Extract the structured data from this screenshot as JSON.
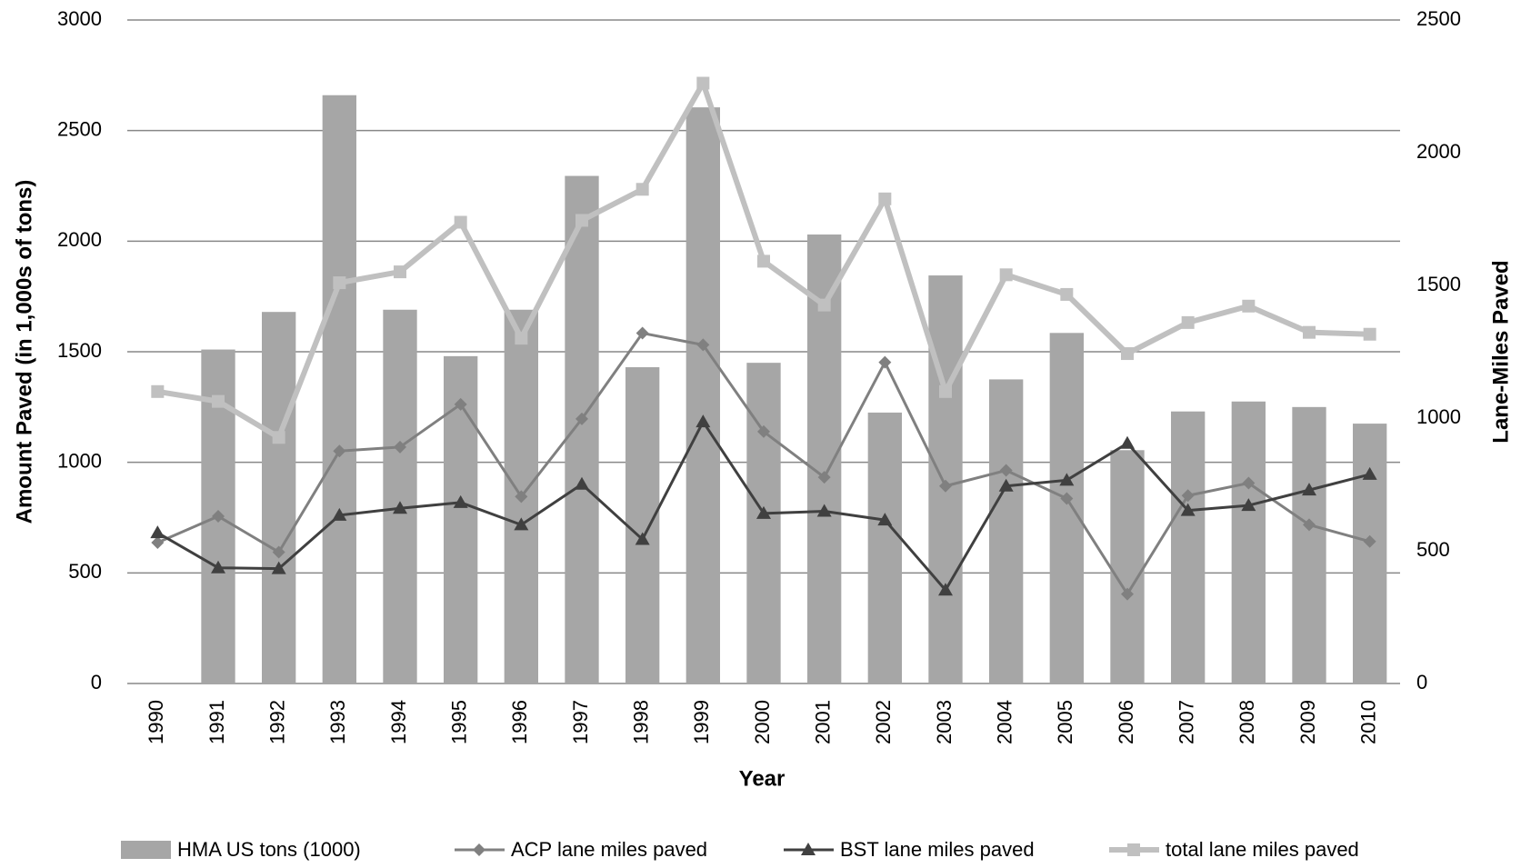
{
  "chart_data": {
    "type": "bar-line",
    "x_label": "Year",
    "y_label": "Amount Paved (in 1,000s of tons)",
    "y2_label": "Lane-Miles Paved",
    "categories": [
      "1990",
      "1991",
      "1992",
      "1993",
      "1994",
      "1995",
      "1996",
      "1997",
      "1998",
      "1999",
      "2000",
      "2001",
      "2002",
      "2003",
      "2004",
      "2005",
      "2006",
      "2007",
      "2008",
      "2009",
      "2010"
    ],
    "ylim": [
      0,
      3000
    ],
    "yticks": [
      0,
      500,
      1000,
      1500,
      2000,
      2500,
      3000
    ],
    "y2lim": [
      0,
      2500
    ],
    "y2ticks": [
      0,
      500,
      1000,
      1500,
      2000,
      2500
    ],
    "grid": true,
    "legend": "bottom",
    "series": [
      {
        "name": "HMA US tons (1000)",
        "type": "bar",
        "color": "#a6a6a6",
        "values": [
          null,
          1510,
          1680,
          2660,
          1690,
          1480,
          1690,
          2295,
          1430,
          2605,
          1450,
          2030,
          1225,
          1845,
          1375,
          1585,
          1055,
          1230,
          1275,
          1250,
          1175
        ]
      },
      {
        "name": "ACP lane miles paved",
        "type": "line",
        "axis": "y2",
        "marker": "diamond",
        "color": "#808080",
        "values": [
          531,
          630,
          495,
          876,
          891,
          1052,
          704,
          997,
          1320,
          1276,
          949,
          777,
          1210,
          744,
          803,
          697,
          337,
          708,
          755,
          598,
          535
        ]
      },
      {
        "name": "BST lane miles paved",
        "type": "line",
        "axis": "y2",
        "marker": "triangle",
        "color": "#404040",
        "values": [
          568,
          436,
          433,
          634,
          660,
          682,
          598,
          751,
          543,
          986,
          641,
          649,
          616,
          352,
          744,
          766,
          905,
          652,
          671,
          729,
          788
        ]
      },
      {
        "name": "total lane miles paved",
        "type": "line",
        "axis": "y2",
        "marker": "square",
        "color": "#c0c0c0",
        "values": [
          1100,
          1063,
          927,
          1510,
          1551,
          1738,
          1301,
          1745,
          1862,
          2262,
          1591,
          1426,
          1826,
          1100,
          1540,
          1466,
          1243,
          1360,
          1422,
          1323,
          1316
        ]
      }
    ]
  }
}
